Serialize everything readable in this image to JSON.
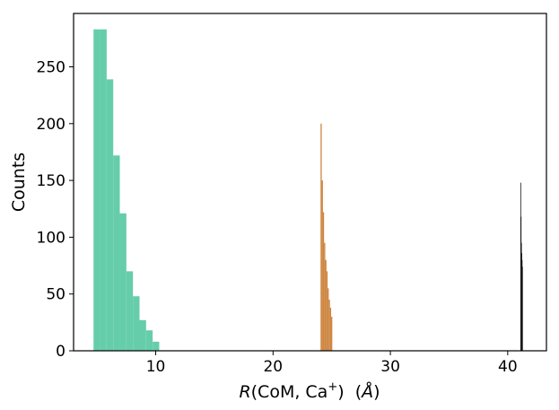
{
  "chart_data": {
    "type": "histogram",
    "title": "",
    "xlabel": "R(CoM, Ca⁺) (Å)",
    "xlabel_parts": {
      "italic": "R",
      "body": "(CoM, Ca",
      "superscript": "+",
      "tail": ")  (",
      "unit_italic": "Å",
      "close": ")"
    },
    "ylabel": "Counts",
    "xlim": [
      3.0,
      43.3
    ],
    "ylim": [
      0,
      297
    ],
    "xticks": [
      10,
      20,
      30,
      40
    ],
    "yticks": [
      0,
      50,
      100,
      150,
      200,
      250
    ],
    "grid": false,
    "legend": "none",
    "series": [
      {
        "color": "#66cdaa",
        "bins": [
          {
            "x0": 4.7,
            "x1": 5.26,
            "count": 283
          },
          {
            "x0": 5.26,
            "x1": 5.82,
            "count": 283
          },
          {
            "x0": 5.82,
            "x1": 6.38,
            "count": 239
          },
          {
            "x0": 6.38,
            "x1": 6.94,
            "count": 172
          },
          {
            "x0": 6.94,
            "x1": 7.5,
            "count": 121
          },
          {
            "x0": 7.5,
            "x1": 8.06,
            "count": 70
          },
          {
            "x0": 8.06,
            "x1": 8.62,
            "count": 48
          },
          {
            "x0": 8.62,
            "x1": 9.18,
            "count": 27
          },
          {
            "x0": 9.18,
            "x1": 9.74,
            "count": 18
          },
          {
            "x0": 9.74,
            "x1": 10.3,
            "count": 8
          }
        ]
      },
      {
        "color": "#cd853f",
        "bins": [
          {
            "x0": 24.05,
            "x1": 24.15,
            "count": 200
          },
          {
            "x0": 24.15,
            "x1": 24.25,
            "count": 150
          },
          {
            "x0": 24.25,
            "x1": 24.35,
            "count": 122
          },
          {
            "x0": 24.35,
            "x1": 24.45,
            "count": 95
          },
          {
            "x0": 24.45,
            "x1": 24.55,
            "count": 80
          },
          {
            "x0": 24.55,
            "x1": 24.65,
            "count": 70
          },
          {
            "x0": 24.65,
            "x1": 24.75,
            "count": 55
          },
          {
            "x0": 24.75,
            "x1": 24.85,
            "count": 45
          },
          {
            "x0": 24.85,
            "x1": 24.95,
            "count": 38
          },
          {
            "x0": 24.95,
            "x1": 25.05,
            "count": 30
          }
        ]
      },
      {
        "color": "#1a1a1a",
        "bins": [
          {
            "x0": 41.08,
            "x1": 41.11,
            "count": 148
          },
          {
            "x0": 41.11,
            "x1": 41.14,
            "count": 118
          },
          {
            "x0": 41.14,
            "x1": 41.17,
            "count": 95
          },
          {
            "x0": 41.17,
            "x1": 41.2,
            "count": 86
          },
          {
            "x0": 41.2,
            "x1": 41.23,
            "count": 80
          },
          {
            "x0": 41.23,
            "x1": 41.26,
            "count": 74
          }
        ]
      }
    ]
  }
}
